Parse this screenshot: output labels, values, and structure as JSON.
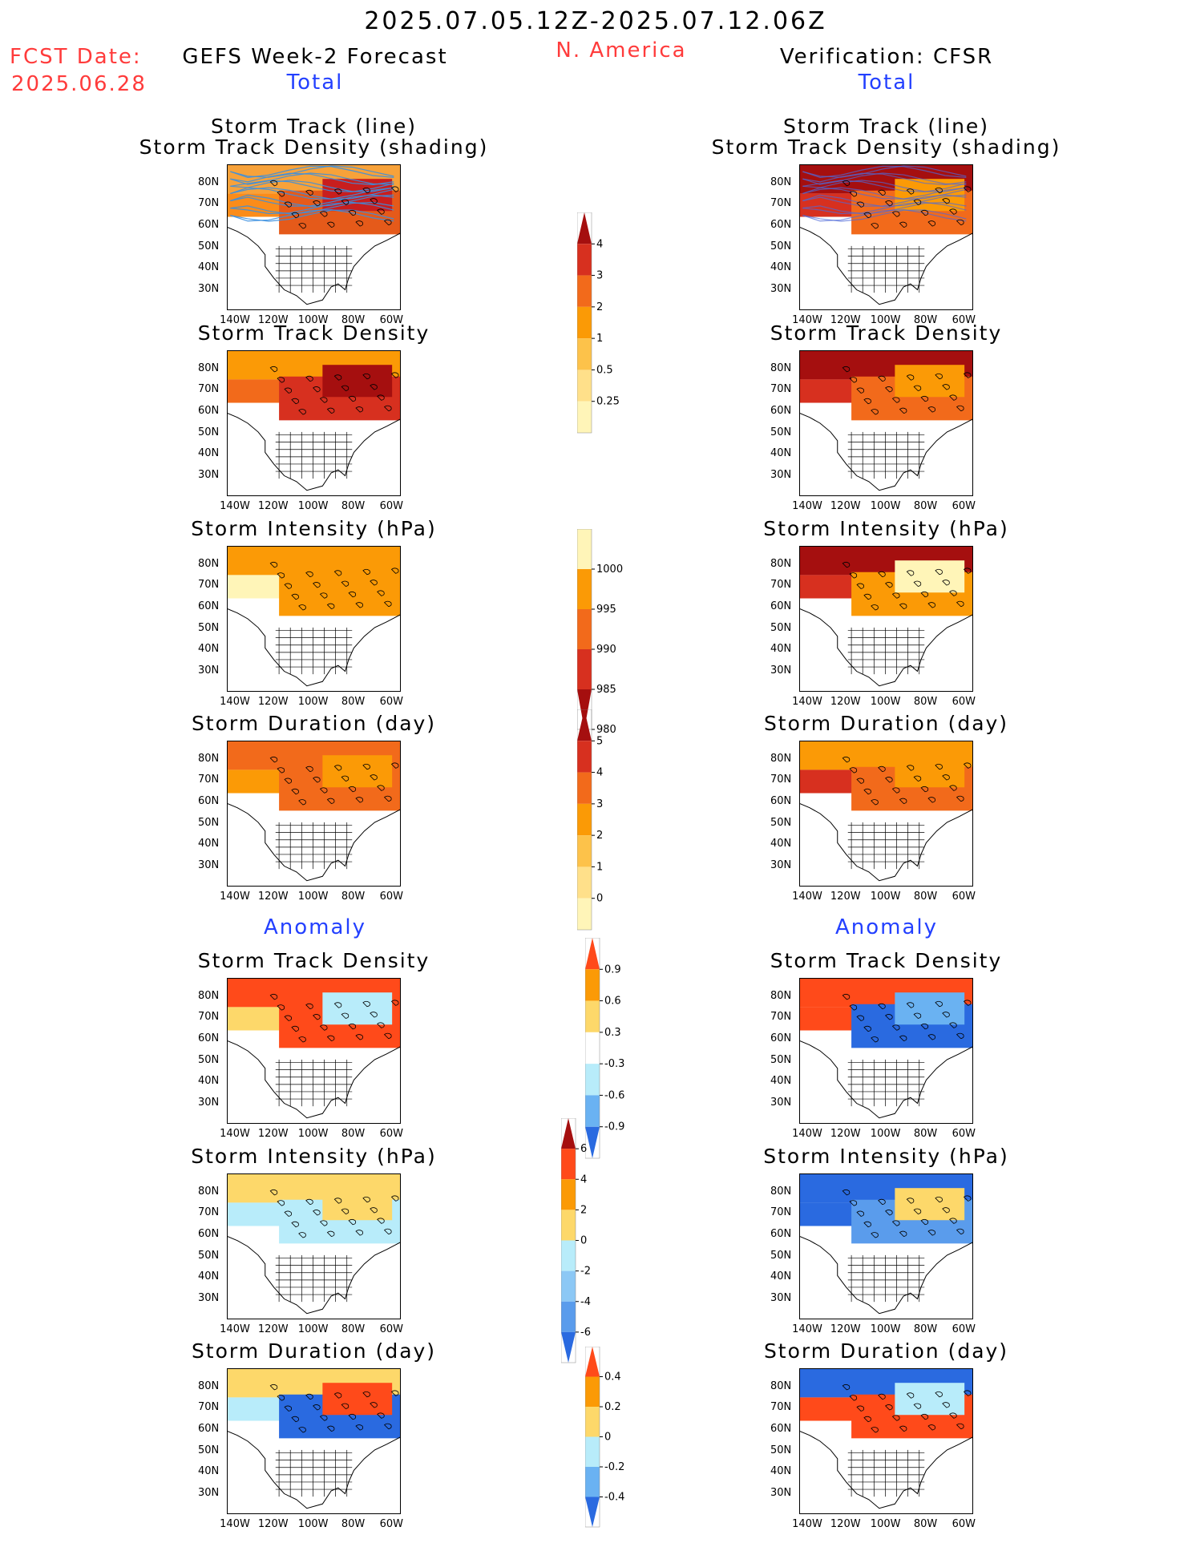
{
  "header": {
    "date_range": "2025.07.05.12Z-2025.07.12.06Z",
    "region": "N. America",
    "fcst_label": "FCST Date:",
    "fcst_date": "2025.06.28",
    "left_title": "GEFS Week-2 Forecast",
    "right_title": "Verification: CFSR",
    "total_label": "Total",
    "anomaly_label": "Anomaly"
  },
  "map": {
    "lat_labels": [
      "80N",
      "70N",
      "60N",
      "50N",
      "40N",
      "30N"
    ],
    "lon_labels": [
      "140W",
      "120W",
      "100W",
      "80W",
      "60W"
    ]
  },
  "panels": [
    {
      "id": "track",
      "title_line1": "Storm Track (line)",
      "title_line2": "Storm Track Density (shading)"
    },
    {
      "id": "density",
      "title": "Storm Track Density"
    },
    {
      "id": "intensity",
      "title": "Storm Intensity (hPa)"
    },
    {
      "id": "duration",
      "title": "Storm Duration (day)"
    },
    {
      "id": "anom_density",
      "title": "Storm Track Density"
    },
    {
      "id": "anom_intensity",
      "title": "Storm Intensity (hPa)"
    },
    {
      "id": "anom_duration",
      "title": "Storm Duration (day)"
    }
  ],
  "colorbars": {
    "density": {
      "labels": [
        "4",
        "3",
        "2",
        "1",
        "0.5",
        "0.25"
      ],
      "colors": [
        "#a50f0f",
        "#d7301f",
        "#f26a1b",
        "#fb9a06",
        "#fdc24a",
        "#ffe08a",
        "#fff5b8"
      ]
    },
    "intensity": {
      "labels": [
        "1000",
        "995",
        "990",
        "985",
        "980"
      ],
      "colors": [
        "#fff5b8",
        "#fb9a06",
        "#f26a1b",
        "#d7301f",
        "#a50f0f"
      ]
    },
    "duration": {
      "labels": [
        "5",
        "4",
        "3",
        "2",
        "1",
        "0"
      ],
      "colors": [
        "#a50f0f",
        "#d7301f",
        "#f26a1b",
        "#fb9a06",
        "#fdc24a",
        "#ffe08a",
        "#fff5b8"
      ]
    },
    "anom_density": {
      "labels": [
        "0.9",
        "0.6",
        "0.3",
        "-0.3",
        "-0.6",
        "-0.9"
      ],
      "colors": [
        "#ff4a1a",
        "#fb9a06",
        "#fdd86a",
        "#ffffff",
        "#b8ecfa",
        "#6ab2f2",
        "#2a6ae0"
      ]
    },
    "anom_intensity": {
      "labels": [
        "6",
        "4",
        "2",
        "0",
        "-2",
        "-4",
        "-6"
      ],
      "colors": [
        "#a50f0f",
        "#ff4a1a",
        "#fb9a06",
        "#fdd86a",
        "#b8ecfa",
        "#8cc8f5",
        "#5a9cec",
        "#2a6ae0"
      ]
    },
    "anom_duration": {
      "labels": [
        "0.4",
        "0.2",
        "0",
        "-0.2",
        "-0.4"
      ],
      "colors": [
        "#ff4a1a",
        "#fb9a06",
        "#fdd86a",
        "#b8ecfa",
        "#6ab2f2",
        "#2a6ae0"
      ]
    }
  },
  "shading": {
    "track": {
      "left": [
        "#f7a23a",
        "#fb8c1a",
        "#e55a1a",
        "#c81e1e"
      ],
      "right": [
        "#a50f0f",
        "#d7301f",
        "#f26a1b",
        "#fb9a06"
      ]
    },
    "density": {
      "left": [
        "#fb9a06",
        "#f26a1b",
        "#d7301f",
        "#a50f0f"
      ],
      "right": [
        "#a50f0f",
        "#d7301f",
        "#f26a1b",
        "#fb9a06"
      ]
    },
    "intensity": {
      "left": [
        "#fb9a06",
        "#fff5b8",
        "#fb9a06",
        "#fb9a06"
      ],
      "right": [
        "#a50f0f",
        "#d7301f",
        "#fb9a06",
        "#fff5b8"
      ]
    },
    "duration": {
      "left": [
        "#f26a1b",
        "#fb9a06",
        "#f26a1b",
        "#fb9a06"
      ],
      "right": [
        "#fb9a06",
        "#d7301f",
        "#f26a1b",
        "#fb9a06"
      ]
    },
    "anom_density": {
      "left": [
        "#ff4a1a",
        "#fdd86a",
        "#ff4a1a",
        "#b8ecfa"
      ],
      "right": [
        "#ff4a1a",
        "#ff4a1a",
        "#2a6ae0",
        "#6ab2f2"
      ]
    },
    "anom_intensity": {
      "left": [
        "#fdd86a",
        "#b8ecfa",
        "#b8ecfa",
        "#fdd86a"
      ],
      "right": [
        "#2a6ae0",
        "#2a6ae0",
        "#5a9cec",
        "#fdd86a"
      ]
    },
    "anom_duration": {
      "left": [
        "#fdd86a",
        "#b8ecfa",
        "#2a6ae0",
        "#ff4a1a"
      ],
      "right": [
        "#2a6ae0",
        "#ff4a1a",
        "#ff4a1a",
        "#b8ecfa"
      ]
    }
  }
}
